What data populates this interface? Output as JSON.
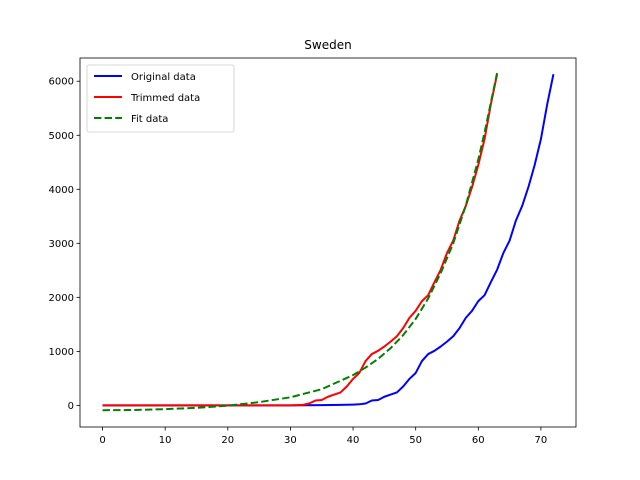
{
  "chart_data": {
    "type": "line",
    "title": "Sweden",
    "xlabel": "",
    "ylabel": "",
    "xlim": [
      -3.6,
      75.6
    ],
    "ylim": [
      -400,
      6430
    ],
    "xticks": [
      0,
      10,
      20,
      30,
      40,
      50,
      60,
      70
    ],
    "yticks": [
      0,
      1000,
      2000,
      3000,
      4000,
      5000,
      6000
    ],
    "grid": false,
    "legend_position": "top-left",
    "series": [
      {
        "name": "Original data",
        "color": "#0000ff",
        "style": "solid",
        "x": [
          0,
          30,
          35,
          38,
          40,
          41,
          42,
          43,
          44,
          45,
          46,
          47,
          48,
          49,
          50,
          51,
          52,
          53,
          54,
          55,
          56,
          57,
          58,
          59,
          60,
          61,
          62,
          63,
          64,
          65,
          66,
          67,
          68,
          69,
          70,
          71,
          72
        ],
        "y": [
          0,
          0,
          5,
          10,
          15,
          20,
          35,
          90,
          100,
          160,
          200,
          240,
          350,
          490,
          600,
          820,
          950,
          1010,
          1090,
          1180,
          1280,
          1430,
          1620,
          1750,
          1930,
          2040,
          2280,
          2510,
          2820,
          3050,
          3420,
          3690,
          4040,
          4450,
          4930,
          5570,
          6130
        ]
      },
      {
        "name": "Trimmed data",
        "color": "#ff0000",
        "style": "solid",
        "x": [
          0,
          30,
          31,
          32,
          33,
          34,
          35,
          36,
          37,
          38,
          39,
          40,
          41,
          42,
          43,
          44,
          45,
          46,
          47,
          48,
          49,
          50,
          51,
          52,
          53,
          54,
          55,
          56,
          57,
          58,
          59,
          60,
          61,
          62,
          63
        ],
        "y": [
          0,
          0,
          5,
          10,
          35,
          90,
          100,
          160,
          200,
          240,
          350,
          490,
          600,
          820,
          950,
          1010,
          1090,
          1180,
          1280,
          1430,
          1620,
          1750,
          1930,
          2040,
          2280,
          2510,
          2820,
          3050,
          3420,
          3690,
          4040,
          4450,
          4930,
          5570,
          6130
        ]
      },
      {
        "name": "Fit data",
        "color": "#008000",
        "style": "dashed",
        "x": [
          0,
          5,
          10,
          15,
          20,
          25,
          30,
          35,
          40,
          42,
          44,
          46,
          48,
          50,
          52,
          54,
          56,
          58,
          60,
          61,
          62,
          63
        ],
        "y": [
          -90,
          -85,
          -70,
          -45,
          -5,
          60,
          150,
          300,
          560,
          700,
          860,
          1060,
          1300,
          1600,
          1980,
          2450,
          3000,
          3700,
          4550,
          5050,
          5600,
          6150
        ]
      }
    ]
  }
}
